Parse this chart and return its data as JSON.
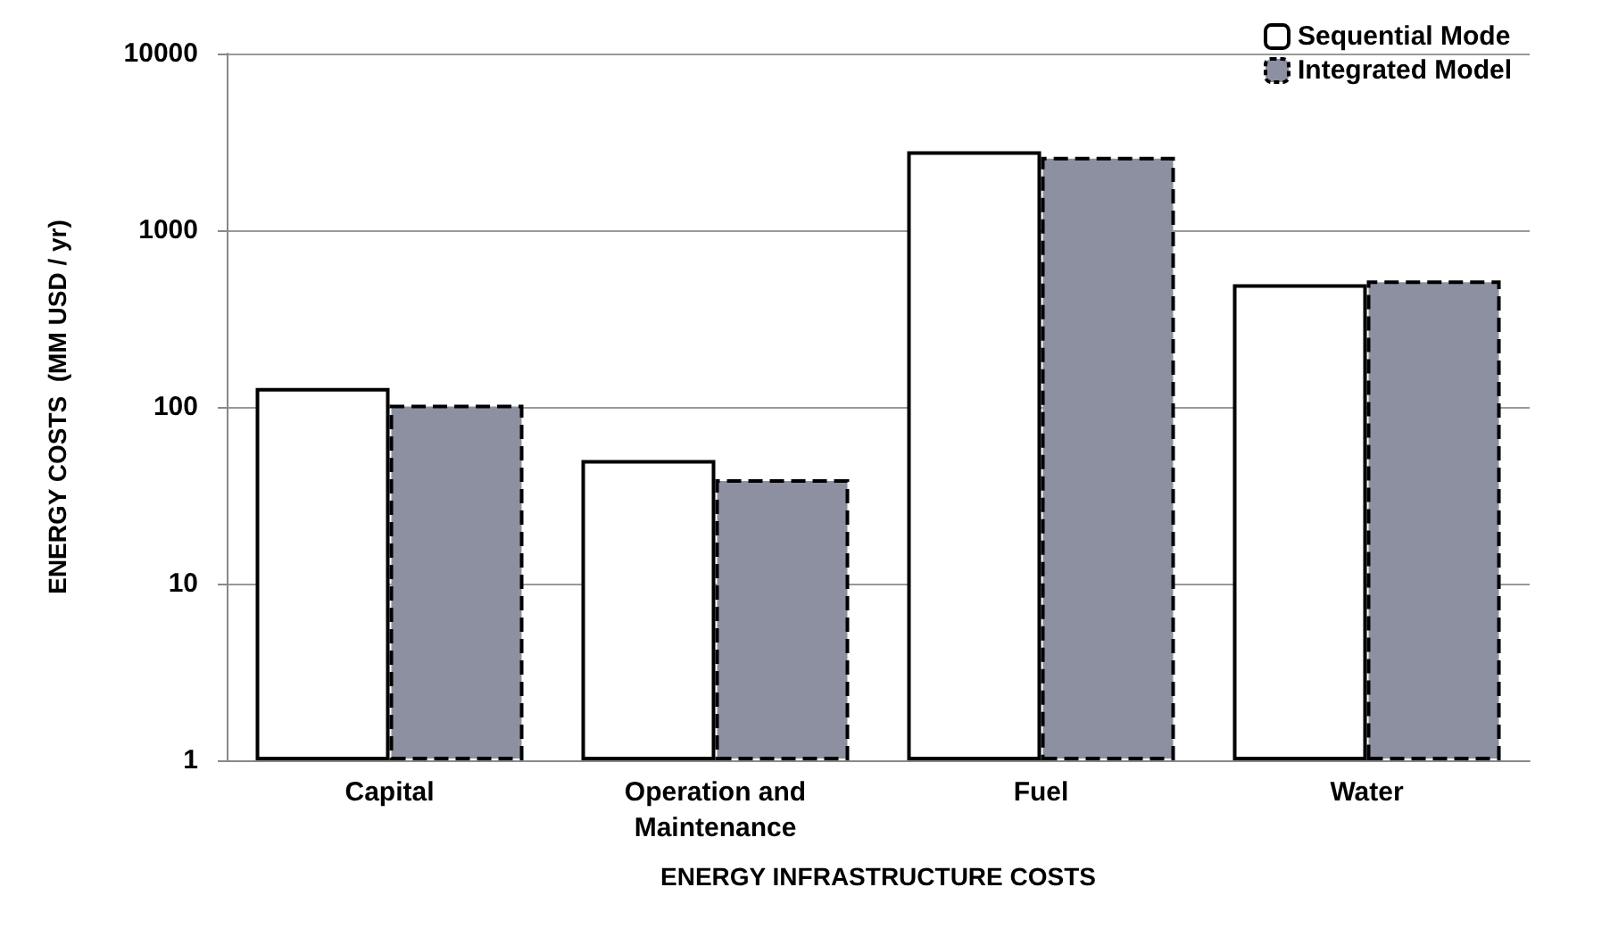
{
  "chart_data": {
    "type": "bar",
    "xlabel": "ENERGY INFRASTRUCTURE COSTS",
    "ylabel": "ENERGY COSTS  (MM USD / yr)",
    "categories": [
      "Capital",
      "Operation and\nMaintenance",
      "Fuel",
      "Water"
    ],
    "series": [
      {
        "name": "Sequential Mode",
        "color": "#ffffff",
        "line_style": "solid",
        "values": [
          128,
          50,
          2800,
          495
        ]
      },
      {
        "name": "Integrated Model",
        "color": "#8c90a0",
        "line_style": "dashed",
        "values": [
          103,
          39,
          2600,
          520
        ]
      }
    ],
    "log": "y",
    "ylim": [
      1,
      10000
    ],
    "yticks": [
      1,
      10,
      100,
      1000,
      10000
    ],
    "grid": "y",
    "legend": "top right"
  }
}
